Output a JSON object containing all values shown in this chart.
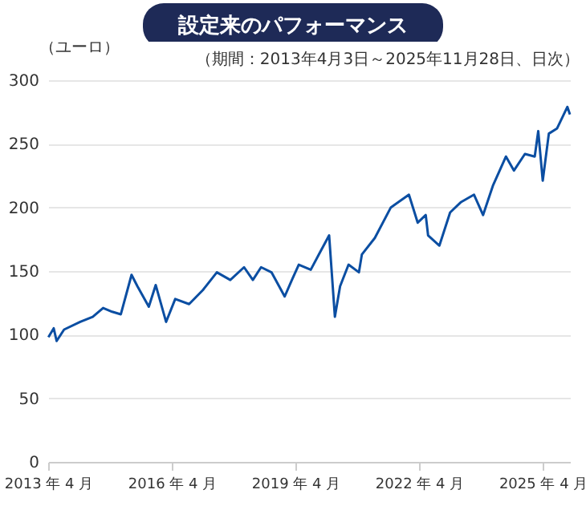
{
  "chart_data": {
    "type": "line",
    "title": "設定来のパフォーマンス",
    "ylabel": "（ユーロ）",
    "annotations": [
      "（期間：2013年4月3日～2025年11月28日、日次）"
    ],
    "x": [
      "2013-04-03",
      "2013-05-20",
      "2013-06-15",
      "2013-08-20",
      "2014-01-10",
      "2014-05-01",
      "2014-08-01",
      "2014-10-20",
      "2015-01-05",
      "2015-04-10",
      "2015-06-01",
      "2015-09-10",
      "2015-11-10",
      "2016-02-10",
      "2016-05-01",
      "2016-09-01",
      "2017-01-01",
      "2017-05-05",
      "2017-09-01",
      "2018-01-01",
      "2018-03-20",
      "2018-06-01",
      "2018-09-01",
      "2018-12-27",
      "2019-03-01",
      "2019-05-01",
      "2019-08-15",
      "2019-11-01",
      "2020-01-25",
      "2020-03-16",
      "2020-05-01",
      "2020-07-15",
      "2020-10-15",
      "2020-11-10",
      "2021-03-05",
      "2021-07-25",
      "2022-01-01",
      "2022-03-20",
      "2022-05-30",
      "2022-06-20",
      "2022-09-28",
      "2023-01-01",
      "2023-04-05",
      "2023-08-01",
      "2023-10-20",
      "2024-01-15",
      "2024-05-10",
      "2024-07-20",
      "2024-10-25",
      "2025-01-20",
      "2025-02-20",
      "2025-04-01",
      "2025-05-25",
      "2025-08-05",
      "2025-11-05",
      "2025-11-28"
    ],
    "series": [
      {
        "color": "#0b4ea2",
        "values": [
          98,
          105,
          95,
          104,
          110,
          114,
          121,
          118,
          116,
          147,
          138,
          122,
          139,
          110,
          128,
          124,
          135,
          149,
          143,
          153,
          143,
          153,
          149,
          130,
          143,
          155,
          151,
          164,
          178,
          114,
          138,
          155,
          149,
          163,
          176,
          200,
          210,
          188,
          194,
          178,
          170,
          196,
          204,
          210,
          194,
          217,
          240,
          229,
          242,
          240,
          260,
          221,
          258,
          262,
          279,
          273
        ]
      }
    ],
    "xlim": [
      "2013-04-01",
      "2025-11-28"
    ],
    "xticks": [
      {
        "value": "2013-04-01",
        "label": "2013 年 4 月"
      },
      {
        "value": "2016-04-01",
        "label": "2016 年 4 月"
      },
      {
        "value": "2019-04-01",
        "label": "2019 年 4 月"
      },
      {
        "value": "2022-04-01",
        "label": "2022 年 4 月"
      },
      {
        "value": "2025-04-01",
        "label": "2025 年 4 月"
      }
    ],
    "ylim": [
      0,
      300
    ],
    "yticks": [
      0,
      50,
      100,
      150,
      200,
      250,
      300
    ],
    "grid": "y",
    "legend": false,
    "marker": "none",
    "line_style": "solid"
  }
}
